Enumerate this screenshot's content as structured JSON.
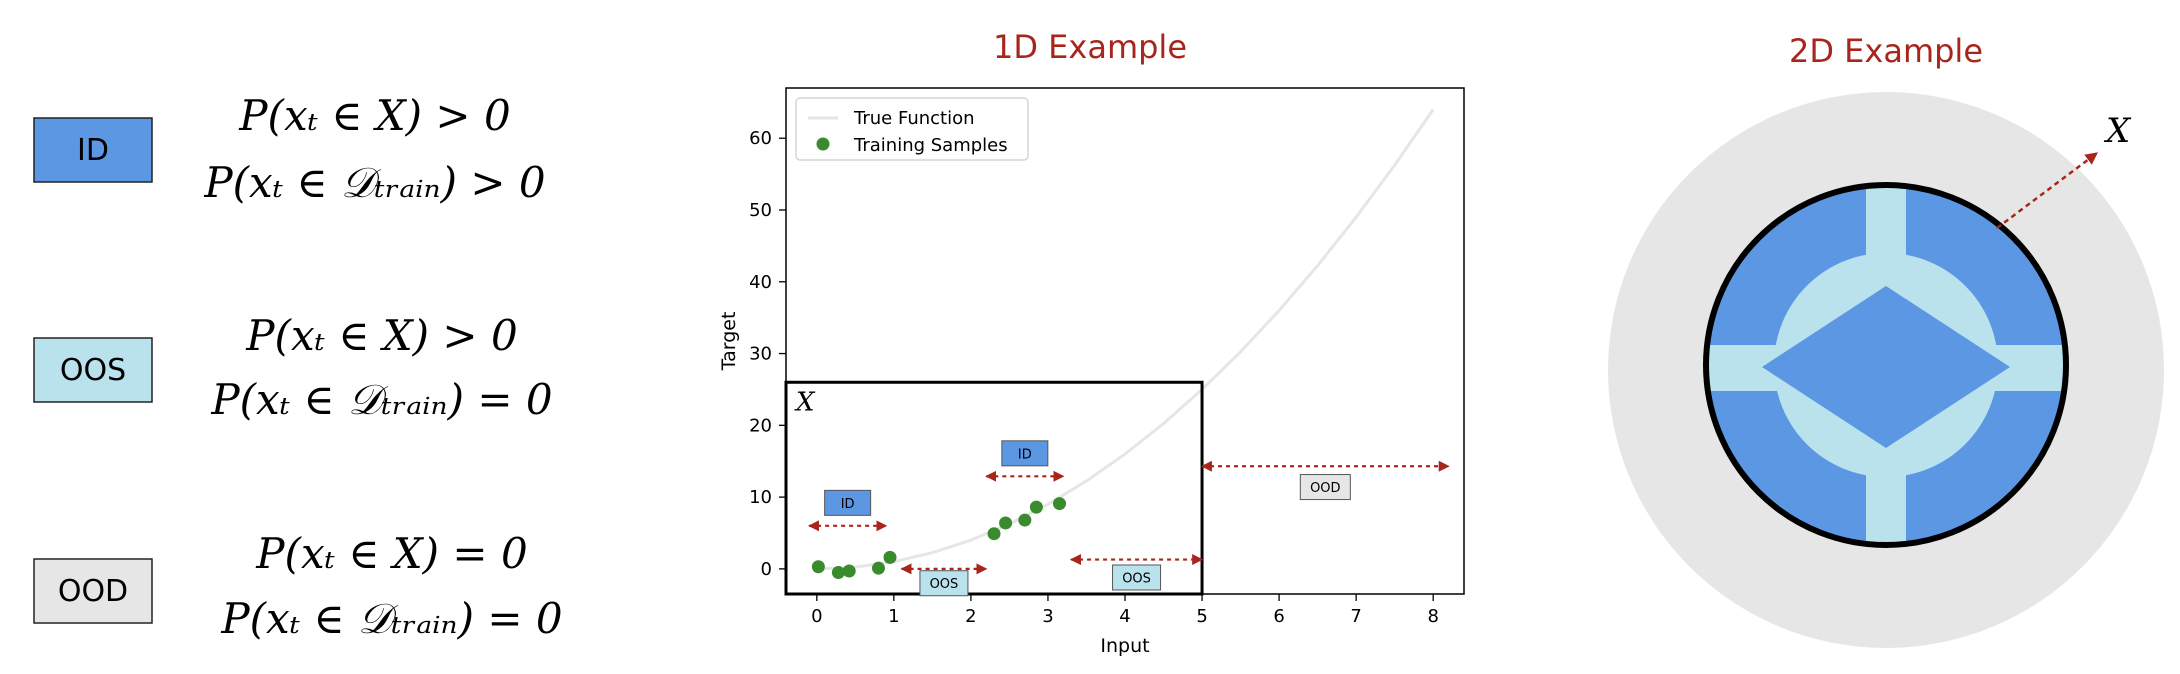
{
  "legend_panel": {
    "rows": [
      {
        "badge": "ID",
        "color": "#5b97e3",
        "line1": "P(xₜ ∈ X) > 0",
        "line2": "P(xₜ ∈ 𝒟ₜᵣₐᵢₙ) > 0"
      },
      {
        "badge": "OOS",
        "color": "#b9e2ec",
        "line1": "P(xₜ ∈ X) > 0",
        "line2": "P(xₜ ∈ 𝒟ₜᵣₐᵢₙ) = 0"
      },
      {
        "badge": "OOD",
        "color": "#e6e6e6",
        "line1": "P(xₜ ∈ X) = 0",
        "line2": "P(xₜ ∈ 𝒟ₜᵣₐᵢₙ) = 0"
      }
    ]
  },
  "example_1d": {
    "title": "1D Example",
    "region_label": "X",
    "region_x_range": [
      -0.4,
      5.0
    ],
    "region_y_top": 26,
    "annotations": [
      {
        "label": "ID",
        "kind": "ID",
        "x_range": [
          -0.1,
          0.9
        ],
        "y": 6,
        "label_y": 9.2
      },
      {
        "label": "OOS",
        "kind": "OOS",
        "x_range": [
          1.1,
          2.2
        ],
        "y": 0,
        "label_y": -2
      },
      {
        "label": "ID",
        "kind": "ID",
        "x_range": [
          2.2,
          3.2
        ],
        "y": 12.9,
        "label_y": 16.1
      },
      {
        "label": "OOS",
        "kind": "OOS",
        "x_range": [
          3.3,
          5.0
        ],
        "y": 1.3,
        "label_y": -1.2
      },
      {
        "label": "OOD",
        "kind": "OOD",
        "x_range": [
          5.0,
          8.2
        ],
        "y": 14.3,
        "label_y": 11.4
      }
    ]
  },
  "chart_data": {
    "type": "scatter",
    "xlabel": "Input",
    "ylabel": "Target",
    "xlim": [
      -0.4,
      8.4
    ],
    "ylim": [
      -3.5,
      67
    ],
    "xticks": [
      0,
      1,
      2,
      3,
      4,
      5,
      6,
      7,
      8
    ],
    "yticks": [
      0,
      10,
      20,
      30,
      40,
      50,
      60
    ],
    "legend_position": "top-left",
    "series": [
      {
        "name": "True Function",
        "kind": "line",
        "color": "#e6e6e6",
        "x": [
          0,
          0.5,
          1,
          1.5,
          2,
          2.5,
          3,
          3.5,
          4,
          4.5,
          5,
          5.5,
          6,
          6.5,
          7,
          7.5,
          8
        ],
        "y": [
          0,
          0.25,
          1,
          2.25,
          4,
          6.25,
          9,
          12.25,
          16,
          20.25,
          25,
          30.25,
          36,
          42.25,
          49,
          56.25,
          64
        ]
      },
      {
        "name": "Training Samples",
        "kind": "scatter",
        "color": "#3a8a2e",
        "x": [
          0.02,
          0.28,
          0.42,
          0.8,
          0.95,
          2.3,
          2.45,
          2.7,
          2.85,
          3.15
        ],
        "y": [
          0.3,
          -0.5,
          -0.3,
          0.1,
          1.6,
          4.9,
          6.4,
          6.8,
          8.6,
          9.1
        ]
      }
    ]
  },
  "example_2d": {
    "title": "2D Example",
    "space_label": "X",
    "colors": {
      "outer": "#e6e6e6",
      "blue": "#5b97e3",
      "light": "#b9e2ec"
    }
  },
  "colors": {
    "title": "#a8251c",
    "arrow": "#a8251c",
    "frame": "#000000"
  }
}
